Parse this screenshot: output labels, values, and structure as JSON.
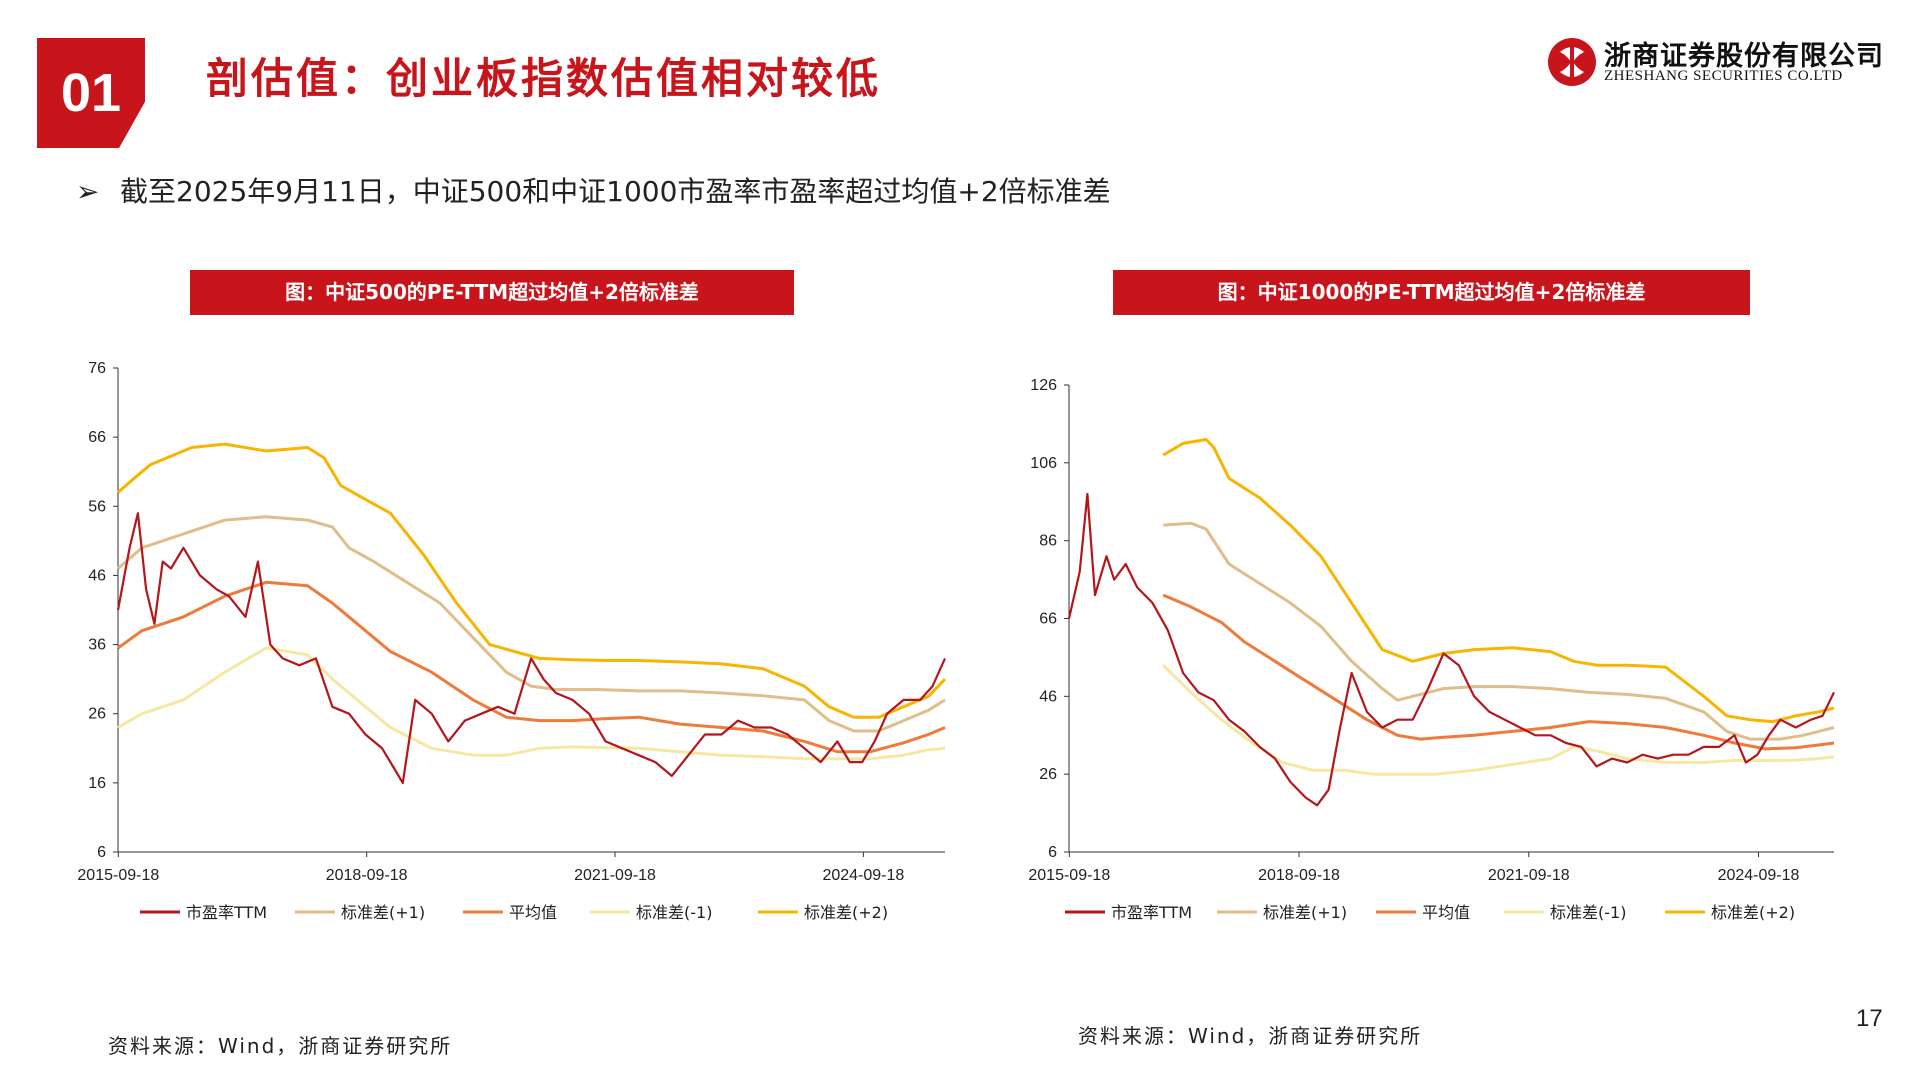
{
  "header": {
    "section_number": "01",
    "title": "剖估值：创业板指数估值相对较低",
    "logo_cn": "浙商证券股份有限公司",
    "logo_en": "ZHESHANG SECURITIES CO.LTD"
  },
  "bullet_text": "截至2025年9月11日，中证500和中证1000市盈率市盈率超过均值+2倍标准差",
  "page_number": "17",
  "left_source": "资料来源：Wind，浙商证券研究所",
  "right_source": "资料来源：Wind，浙商证券研究所",
  "colors": {
    "brand_red": "#c8151b",
    "pe": "#b5161c",
    "std_plus1": "#e0bd8a",
    "mean": "#ee7a3b",
    "std_minus1": "#f6e8a2",
    "std_plus2": "#f7b500"
  },
  "chart_data": [
    {
      "type": "line",
      "title": "图：中证500的PE-TTM超过均值+2倍标准差",
      "x_ticks": [
        "2015-09-18",
        "2018-09-18",
        "2021-09-18",
        "2024-09-18"
      ],
      "xlim": [
        2015.71,
        2025.7
      ],
      "ylim": [
        6,
        76
      ],
      "y_ticks": [
        6,
        16,
        26,
        36,
        46,
        56,
        66,
        76
      ],
      "legend": [
        "市盈率TTM",
        "标准差(+1)",
        "平均值",
        "标准差(-1)",
        "标准差(+2)"
      ],
      "series": [
        {
          "name": "市盈率TTM",
          "color": "#b5161c",
          "t": [
            2015.71,
            2015.85,
            2015.95,
            2016.05,
            2016.15,
            2016.25,
            2016.35,
            2016.5,
            2016.7,
            2016.9,
            2017.05,
            2017.25,
            2017.4,
            2017.55,
            2017.7,
            2017.9,
            2018.1,
            2018.3,
            2018.5,
            2018.7,
            2018.9,
            2019.05,
            2019.15,
            2019.3,
            2019.5,
            2019.7,
            2019.9,
            2020.1,
            2020.3,
            2020.5,
            2020.7,
            2020.85,
            2021.0,
            2021.2,
            2021.4,
            2021.6,
            2021.8,
            2022.0,
            2022.2,
            2022.4,
            2022.6,
            2022.8,
            2023.0,
            2023.2,
            2023.4,
            2023.6,
            2023.8,
            2024.0,
            2024.2,
            2024.4,
            2024.55,
            2024.7,
            2024.85,
            2025.0,
            2025.2,
            2025.4,
            2025.55,
            2025.7
          ],
          "values": [
            41,
            50,
            55,
            44,
            39,
            48,
            47,
            50,
            46,
            44,
            43,
            40,
            48,
            36,
            34,
            33,
            34,
            27,
            26,
            23,
            21,
            18,
            16,
            28,
            26,
            22,
            25,
            26,
            27,
            26,
            34,
            31,
            29,
            28,
            26,
            22,
            21,
            20,
            19,
            17,
            20,
            23,
            23,
            25,
            24,
            24,
            23,
            21,
            19,
            22,
            19,
            19,
            22,
            26,
            28,
            28,
            30,
            34
          ]
        },
        {
          "name": "标准差(+1)",
          "color": "#e0bd8a",
          "t": [
            2015.71,
            2016.0,
            2016.5,
            2017.0,
            2017.5,
            2018.0,
            2018.3,
            2018.5,
            2018.8,
            2019.2,
            2019.6,
            2020.0,
            2020.4,
            2020.7,
            2021.0,
            2021.5,
            2022.0,
            2022.5,
            2023.0,
            2023.5,
            2024.0,
            2024.3,
            2024.6,
            2024.9,
            2025.2,
            2025.5,
            2025.7
          ],
          "values": [
            47,
            50,
            52,
            54,
            54.5,
            54,
            53,
            50,
            48,
            45,
            42,
            37,
            32,
            30,
            29.5,
            29.5,
            29.3,
            29.3,
            29,
            28.6,
            28,
            25,
            23.5,
            23.5,
            25,
            26.5,
            28
          ]
        },
        {
          "name": "平均值",
          "color": "#ee7a3b",
          "t": [
            2015.71,
            2016.0,
            2016.5,
            2017.0,
            2017.5,
            2018.0,
            2018.3,
            2018.6,
            2019.0,
            2019.5,
            2020.0,
            2020.4,
            2020.8,
            2021.2,
            2021.6,
            2022.0,
            2022.5,
            2023.0,
            2023.5,
            2024.0,
            2024.4,
            2024.8,
            2025.2,
            2025.5,
            2025.7
          ],
          "values": [
            35.5,
            38,
            40,
            43,
            45,
            44.5,
            42,
            39,
            35,
            32,
            28,
            25.5,
            25,
            25,
            25.3,
            25.5,
            24.5,
            24,
            23.5,
            22,
            20.5,
            20.5,
            21.8,
            23,
            24
          ]
        },
        {
          "name": "标准差(-1)",
          "color": "#f6e8a2",
          "t": [
            2015.71,
            2016.0,
            2016.5,
            2017.0,
            2017.5,
            2018.0,
            2018.3,
            2018.6,
            2019.0,
            2019.5,
            2020.0,
            2020.4,
            2020.8,
            2021.2,
            2021.6,
            2022.0,
            2022.5,
            2023.0,
            2023.5,
            2024.0,
            2024.4,
            2024.8,
            2025.2,
            2025.5,
            2025.7
          ],
          "values": [
            24,
            26,
            28,
            32,
            35.5,
            34.5,
            31,
            28,
            24,
            21,
            20,
            20,
            21,
            21.2,
            21.1,
            21,
            20.5,
            20,
            19.8,
            19.5,
            19.5,
            19.5,
            20,
            20.8,
            21
          ]
        },
        {
          "name": "标准差(+2)",
          "color": "#f7b500",
          "t": [
            2015.71,
            2015.9,
            2016.1,
            2016.3,
            2016.6,
            2017.0,
            2017.5,
            2018.0,
            2018.2,
            2018.4,
            2018.7,
            2019.0,
            2019.4,
            2019.8,
            2020.2,
            2020.5,
            2020.8,
            2021.2,
            2021.6,
            2022.0,
            2022.5,
            2023.0,
            2023.5,
            2024.0,
            2024.3,
            2024.6,
            2024.9,
            2025.2,
            2025.5,
            2025.7
          ],
          "values": [
            58,
            60,
            62,
            63,
            64.5,
            65,
            64,
            64.5,
            63,
            59,
            57,
            55,
            49,
            42,
            36,
            35,
            34,
            33.8,
            33.7,
            33.7,
            33.5,
            33.2,
            32.5,
            30,
            27,
            25.5,
            25.5,
            27,
            28.5,
            31
          ]
        }
      ]
    },
    {
      "type": "line",
      "title": "图：中证1000的PE-TTM超过均值+2倍标准差",
      "x_ticks": [
        "2015-09-18",
        "2018-09-18",
        "2021-09-18",
        "2024-09-18"
      ],
      "xlim": [
        2015.71,
        2025.7
      ],
      "ylim": [
        6,
        126
      ],
      "y_ticks": [
        6,
        26,
        46,
        66,
        86,
        106,
        126
      ],
      "legend": [
        "市盈率TTM",
        "标准差(+1)",
        "平均值",
        "标准差(-1)",
        "标准差(+2)"
      ],
      "series": [
        {
          "name": "市盈率TTM",
          "color": "#b5161c",
          "t": [
            2015.71,
            2015.85,
            2015.95,
            2016.05,
            2016.2,
            2016.3,
            2016.45,
            2016.6,
            2016.8,
            2017.0,
            2017.2,
            2017.4,
            2017.6,
            2017.8,
            2018.0,
            2018.2,
            2018.4,
            2018.6,
            2018.8,
            2018.95,
            2019.1,
            2019.25,
            2019.4,
            2019.6,
            2019.8,
            2020.0,
            2020.2,
            2020.4,
            2020.6,
            2020.8,
            2021.0,
            2021.2,
            2021.4,
            2021.6,
            2021.8,
            2022.0,
            2022.2,
            2022.4,
            2022.6,
            2022.8,
            2023.0,
            2023.2,
            2023.4,
            2023.6,
            2023.8,
            2024.0,
            2024.2,
            2024.4,
            2024.55,
            2024.7,
            2024.85,
            2025.0,
            2025.2,
            2025.4,
            2025.55,
            2025.7
          ],
          "values": [
            66,
            78,
            98,
            72,
            82,
            76,
            80,
            74,
            70,
            63,
            52,
            47,
            45,
            40,
            37,
            33,
            30,
            24,
            20,
            18,
            22,
            38,
            52,
            42,
            38,
            40,
            40,
            48,
            57,
            54,
            46,
            42,
            40,
            38,
            36,
            36,
            34,
            33,
            28,
            30,
            29,
            31,
            30,
            31,
            31,
            33,
            33,
            36,
            29,
            31,
            36,
            40,
            38,
            40,
            41,
            47
          ]
        },
        {
          "name": "标准差(+1)",
          "color": "#e0bd8a",
          "t": [
            2016.94,
            2017.3,
            2017.5,
            2017.8,
            2018.2,
            2018.6,
            2019.0,
            2019.4,
            2019.8,
            2020.0,
            2020.2,
            2020.6,
            2021.0,
            2021.5,
            2022.0,
            2022.5,
            2023.0,
            2023.5,
            2024.0,
            2024.3,
            2024.6,
            2025.0,
            2025.3,
            2025.5,
            2025.7
          ],
          "values": [
            90,
            90.5,
            89,
            80,
            75,
            70,
            64,
            55,
            48,
            45,
            46,
            48,
            48.5,
            48.5,
            48,
            47,
            46.5,
            45.5,
            42,
            37,
            35,
            35,
            36,
            37,
            38
          ]
        },
        {
          "name": "平均值",
          "color": "#ee7a3b",
          "t": [
            2016.94,
            2017.3,
            2017.7,
            2018.0,
            2018.4,
            2018.8,
            2019.2,
            2019.6,
            2020.0,
            2020.3,
            2020.6,
            2021.0,
            2021.5,
            2022.0,
            2022.5,
            2023.0,
            2023.5,
            2024.0,
            2024.4,
            2024.8,
            2025.2,
            2025.5,
            2025.7
          ],
          "values": [
            72,
            69,
            65,
            60,
            55,
            50,
            45,
            40,
            36,
            35,
            35.5,
            36,
            37,
            38,
            39.5,
            39,
            38,
            36,
            34,
            32.5,
            32.8,
            33.5,
            34
          ]
        },
        {
          "name": "标准差(-1)",
          "color": "#f6e8a2",
          "t": [
            2016.94,
            2017.3,
            2017.7,
            2018.1,
            2018.5,
            2018.9,
            2019.3,
            2019.7,
            2020.0,
            2020.5,
            2021.0,
            2021.5,
            2022.0,
            2022.3,
            2022.6,
            2023.0,
            2023.5,
            2024.0,
            2024.4,
            2024.8,
            2025.2,
            2025.5,
            2025.7
          ],
          "values": [
            54,
            47,
            40,
            34,
            29,
            27,
            27,
            26,
            26,
            26,
            27,
            28.5,
            30,
            33,
            32,
            30,
            29,
            29,
            29.5,
            29.5,
            29.6,
            30,
            30.5
          ]
        },
        {
          "name": "标准差(+2)",
          "color": "#f7b500",
          "t": [
            2016.94,
            2017.2,
            2017.5,
            2017.6,
            2017.8,
            2018.2,
            2018.6,
            2019.0,
            2019.4,
            2019.8,
            2020.2,
            2020.6,
            2021.0,
            2021.5,
            2022.0,
            2022.3,
            2022.6,
            2023.0,
            2023.5,
            2024.0,
            2024.3,
            2024.6,
            2024.9,
            2025.2,
            2025.5,
            2025.7
          ],
          "values": [
            108,
            111,
            112,
            110,
            102,
            97,
            90,
            82,
            70,
            58,
            55,
            57,
            58,
            58.5,
            57.5,
            55,
            54,
            54,
            53.5,
            46,
            41,
            40,
            39.5,
            41,
            42,
            43
          ]
        }
      ]
    }
  ]
}
